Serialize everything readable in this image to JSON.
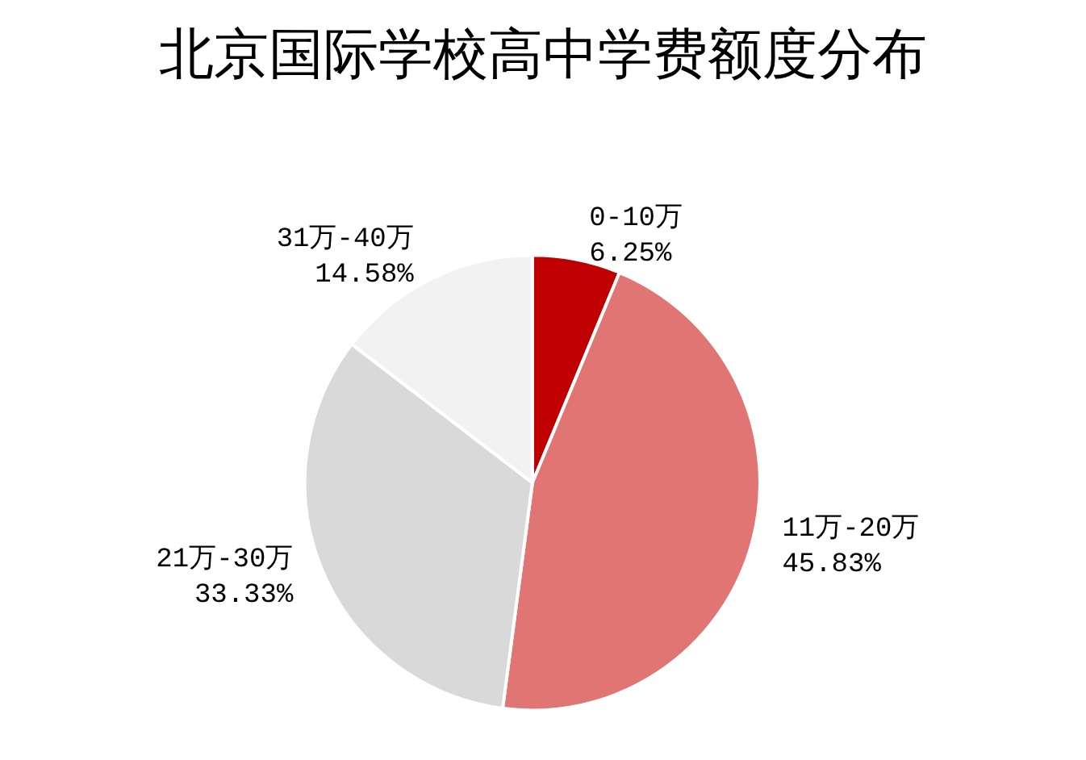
{
  "chart_data": {
    "type": "pie",
    "title": "北京国际学校高中学费额度分布",
    "categories": [
      "0-10万",
      "11万-20万",
      "21万-30万",
      "31万-40万"
    ],
    "values": [
      6.25,
      45.83,
      33.33,
      14.58
    ],
    "value_labels": [
      "6.25%",
      "45.83%",
      "33.33%",
      "14.58%"
    ],
    "colors": [
      "#c00000",
      "#e07574",
      "#d9d9d9",
      "#f2f2f2"
    ],
    "legend": false
  }
}
